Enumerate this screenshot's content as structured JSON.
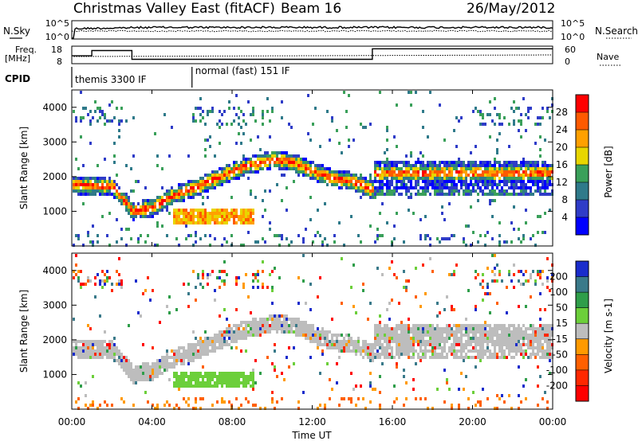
{
  "header": {
    "title": "Christmas Valley East (fitACF)",
    "beam": "Beam 16",
    "date": "26/May/2012"
  },
  "params_panel": {
    "nsky_label": "N.Sky",
    "nsearch_label": "N.Search",
    "noise_ticks_left": [
      "10^5",
      "10^0"
    ],
    "noise_ticks_right": [
      "10^5",
      "10^0"
    ],
    "freq_label": "Freq.",
    "freq_unit": "[MHz]",
    "freq_ticks": [
      "18",
      "8"
    ],
    "nave_label": "Nave",
    "nave_ticks": [
      "60",
      "0"
    ],
    "cpid_label": "CPID",
    "cpid_modes": [
      {
        "label": "themis 3300 IF",
        "start": 0.0,
        "end": 6.0
      },
      {
        "label": "normal (fast) 151 IF",
        "start": 6.0,
        "end": 24.0
      }
    ],
    "freq_step_hours": [
      0,
      1,
      3,
      15,
      24
    ],
    "freq_values_mhz": [
      12.5,
      15.5,
      10.5,
      16.5
    ]
  },
  "chart_data": [
    {
      "type": "heatmap",
      "name": "power",
      "ylabel": "Slant Range [km]",
      "yticks": [
        1000,
        2000,
        3000,
        4000
      ],
      "ylim": [
        0,
        4500
      ],
      "xlim": [
        0,
        24
      ],
      "colorbar": {
        "label": "Power [dB]",
        "ticks": [
          "28",
          "24",
          "20",
          "16",
          "12",
          "8",
          "4"
        ],
        "colors": [
          "#ff0000",
          "#ff5a00",
          "#ffa000",
          "#e8d600",
          "#3aa05a",
          "#2f7a8a",
          "#2f3cc8",
          "#0000ff"
        ]
      },
      "bands": [
        {
          "x": [
            0.2,
            2.0,
            3.0,
            4.0,
            5.0,
            6.0,
            7.0,
            8.0,
            9.0,
            10.0,
            11.0,
            12.0,
            13.0,
            14.0,
            15.0
          ],
          "y_center": [
            1800,
            1750,
            1050,
            1150,
            1500,
            1700,
            1950,
            2200,
            2400,
            2550,
            2450,
            2200,
            2000,
            1900,
            1650
          ],
          "half_width": 230
        }
      ]
    },
    {
      "type": "heatmap",
      "name": "velocity",
      "ylabel": "Slant Range [km]",
      "yticks": [
        1000,
        2000,
        3000,
        4000
      ],
      "ylim": [
        0,
        4500
      ],
      "xlim": [
        0,
        24
      ],
      "colorbar": {
        "label": "Velocity [m s-1]",
        "ticks": [
          "200",
          "100",
          "50",
          "15",
          "-15",
          "-50",
          "-100",
          "-200"
        ],
        "colors": [
          "#1a2ccc",
          "#3a7a8a",
          "#2f9e4a",
          "#6ccf3a",
          "#bdbdbd",
          "#ff9a00",
          "#ff6000",
          "#ff2800",
          "#ff0000"
        ]
      }
    }
  ],
  "time_axis": {
    "label": "Time UT",
    "ticks": [
      "00:00",
      "04:00",
      "08:00",
      "12:00",
      "16:00",
      "20:00",
      "00:00"
    ]
  }
}
